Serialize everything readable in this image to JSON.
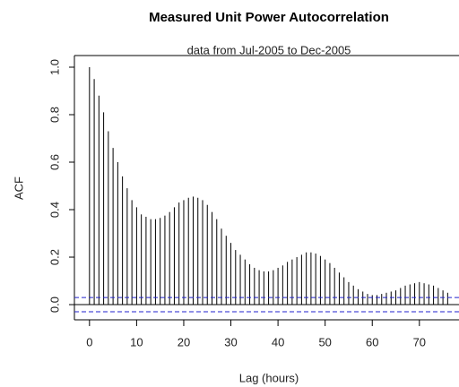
{
  "chart_data": {
    "type": "acf",
    "title": "Measured Unit Power Autocorrelation",
    "subtitle": "data from Jul-2005 to Dec-2005",
    "x_label": "Lag (hours)",
    "y_label": "ACF",
    "x": [
      0,
      1,
      2,
      3,
      4,
      5,
      6,
      7,
      8,
      9,
      10,
      11,
      12,
      13,
      14,
      15,
      16,
      17,
      18,
      19,
      20,
      21,
      22,
      23,
      24,
      25,
      26,
      27,
      28,
      29,
      30,
      31,
      32,
      33,
      34,
      35,
      36,
      37,
      38,
      39,
      40,
      41,
      42,
      43,
      44,
      45,
      46,
      47,
      48,
      49,
      50,
      51,
      52,
      53,
      54,
      55,
      56,
      57,
      58,
      59,
      60,
      61,
      62,
      63,
      64,
      65,
      66,
      67,
      68,
      69,
      70,
      71,
      72,
      73,
      74,
      75,
      76
    ],
    "values": [
      1.0,
      0.95,
      0.88,
      0.81,
      0.73,
      0.66,
      0.6,
      0.54,
      0.49,
      0.44,
      0.41,
      0.38,
      0.37,
      0.36,
      0.36,
      0.365,
      0.375,
      0.39,
      0.41,
      0.43,
      0.44,
      0.45,
      0.455,
      0.45,
      0.44,
      0.42,
      0.39,
      0.36,
      0.32,
      0.29,
      0.26,
      0.23,
      0.21,
      0.19,
      0.17,
      0.155,
      0.145,
      0.14,
      0.14,
      0.145,
      0.155,
      0.165,
      0.18,
      0.19,
      0.2,
      0.21,
      0.22,
      0.22,
      0.215,
      0.205,
      0.19,
      0.175,
      0.155,
      0.135,
      0.115,
      0.095,
      0.08,
      0.065,
      0.055,
      0.045,
      0.04,
      0.04,
      0.045,
      0.05,
      0.055,
      0.06,
      0.07,
      0.08,
      0.085,
      0.09,
      0.095,
      0.09,
      0.085,
      0.08,
      0.07,
      0.06,
      0.05
    ],
    "color": "#000000",
    "confidence_bounds": [
      -0.03,
      0.03
    ],
    "confidence_color": "#2222cc",
    "xlim": [
      -3.2,
      78.3
    ],
    "ylim": [
      -0.064,
      1.049
    ],
    "xticks": [
      0,
      10,
      20,
      30,
      40,
      50,
      60,
      70
    ],
    "yticks": [
      {
        "value": 0,
        "label": "0.0"
      },
      0.2,
      0.4,
      0.6,
      0.8,
      {
        "value": 1,
        "label": "1.0"
      }
    ]
  }
}
